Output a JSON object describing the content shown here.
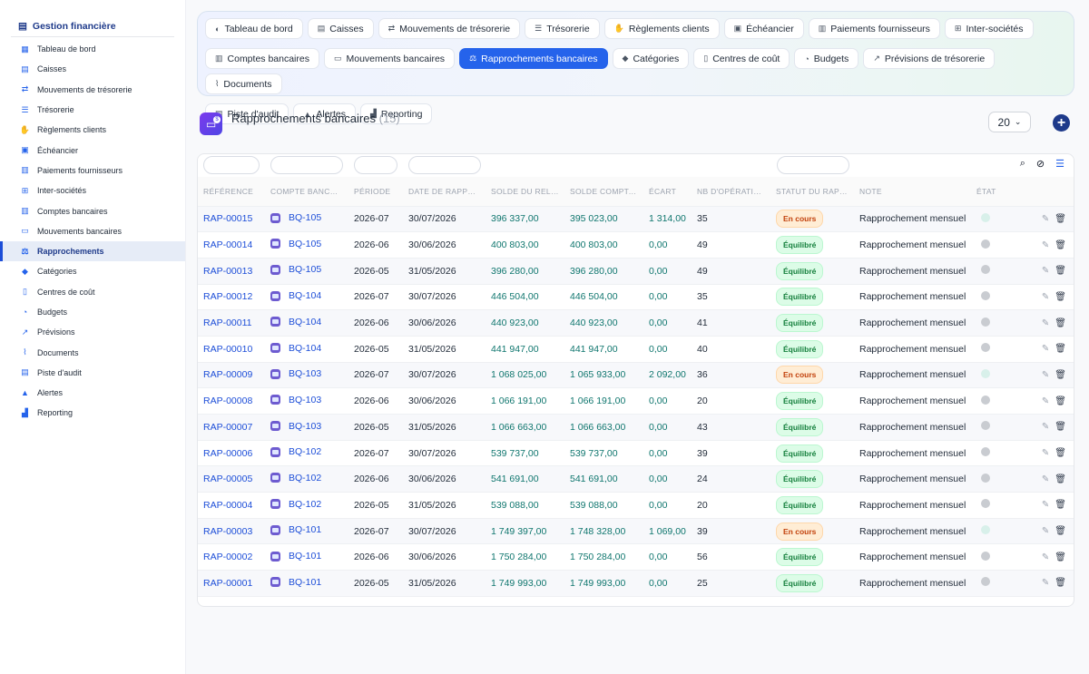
{
  "app": {
    "title": "Gestion financière",
    "brand_icon": "bank-stack-icon"
  },
  "sidebar": {
    "items": [
      {
        "label": "Tableau de bord",
        "icon": "dashboard-icon",
        "glyph": "▦"
      },
      {
        "label": "Caisses",
        "icon": "cash-register-icon",
        "glyph": "▤"
      },
      {
        "label": "Mouvements de trésorerie",
        "icon": "transfer-icon",
        "glyph": "⇄"
      },
      {
        "label": "Trésorerie",
        "icon": "bars-icon",
        "glyph": "☰"
      },
      {
        "label": "Règlements clients",
        "icon": "hand-money-icon",
        "glyph": "✋"
      },
      {
        "label": "Échéancier",
        "icon": "calendar-check-icon",
        "glyph": "▣"
      },
      {
        "label": "Paiements fournisseurs",
        "icon": "invoice-icon",
        "glyph": "▥"
      },
      {
        "label": "Inter-sociétés",
        "icon": "sitemap-icon",
        "glyph": "⊞"
      },
      {
        "label": "Comptes bancaires",
        "icon": "bank-icon",
        "glyph": "▥"
      },
      {
        "label": "Mouvements bancaires",
        "icon": "money-bill-icon",
        "glyph": "▭"
      },
      {
        "label": "Rapprochements",
        "icon": "scale-icon",
        "glyph": "⚖",
        "active": true
      },
      {
        "label": "Catégories",
        "icon": "tags-icon",
        "glyph": "◆"
      },
      {
        "label": "Centres de coût",
        "icon": "building-icon",
        "glyph": "▯"
      },
      {
        "label": "Budgets",
        "icon": "pie-chart-icon",
        "glyph": "◔"
      },
      {
        "label": "Prévisions",
        "icon": "line-chart-icon",
        "glyph": "↗"
      },
      {
        "label": "Documents",
        "icon": "paperclip-icon",
        "glyph": "⌇"
      },
      {
        "label": "Piste d'audit",
        "icon": "clipboard-icon",
        "glyph": "▤"
      },
      {
        "label": "Alertes",
        "icon": "bell-icon",
        "glyph": "▲"
      },
      {
        "label": "Reporting",
        "icon": "chart-bar-icon",
        "glyph": "▟"
      }
    ]
  },
  "tabs": {
    "rows": [
      [
        {
          "label": "Tableau de bord",
          "icon": "dashboard-icon",
          "glyph": "◐"
        },
        {
          "label": "Caisses",
          "icon": "cash-register-icon",
          "glyph": "▤"
        },
        {
          "label": "Mouvements de trésorerie",
          "icon": "transfer-icon",
          "glyph": "⇄"
        },
        {
          "label": "Trésorerie",
          "icon": "bars-icon",
          "glyph": "☰"
        },
        {
          "label": "Règlements clients",
          "icon": "hand-money-icon",
          "glyph": "✋"
        },
        {
          "label": "Échéancier",
          "icon": "calendar-check-icon",
          "glyph": "▣"
        },
        {
          "label": "Paiements fournisseurs",
          "icon": "invoice-icon",
          "glyph": "▥"
        },
        {
          "label": "Inter-sociétés",
          "icon": "sitemap-icon",
          "glyph": "⊞"
        }
      ],
      [
        {
          "label": "Comptes bancaires",
          "icon": "bank-icon",
          "glyph": "▥"
        },
        {
          "label": "Mouvements bancaires",
          "icon": "money-bill-icon",
          "glyph": "▭"
        },
        {
          "label": "Rapprochements bancaires",
          "icon": "scale-icon",
          "glyph": "⚖",
          "active": true
        },
        {
          "label": "Catégories",
          "icon": "tags-icon",
          "glyph": "◆"
        },
        {
          "label": "Centres de coût",
          "icon": "building-icon",
          "glyph": "▯"
        },
        {
          "label": "Budgets",
          "icon": "pie-chart-icon",
          "glyph": "◔"
        },
        {
          "label": "Prévisions de trésorerie",
          "icon": "line-chart-icon",
          "glyph": "↗"
        },
        {
          "label": "Documents",
          "icon": "paperclip-icon",
          "glyph": "⌇"
        }
      ],
      [
        {
          "label": "Piste d'audit",
          "icon": "clipboard-icon",
          "glyph": "▤"
        },
        {
          "label": "Alertes",
          "icon": "bell-icon",
          "glyph": "▲"
        },
        {
          "label": "Reporting",
          "icon": "chart-bar-icon",
          "glyph": "▟"
        }
      ]
    ]
  },
  "header": {
    "title": "Rapprochements bancaires",
    "count": "(15)"
  },
  "pager": {
    "page_size": "20"
  },
  "table": {
    "columns": [
      "Référence",
      "Compte bancaire",
      "Période",
      "Date de rapprochement",
      "Solde du relevé",
      "Solde comptable",
      "Écart",
      "Nb d'opérations",
      "Statut du rapprochement",
      "Note",
      "État",
      ""
    ],
    "rows": [
      {
        "ref": "RAP-00015",
        "account": "BQ-105",
        "period": "2026-07",
        "date": "30/07/2026",
        "stmt": "396 337,00",
        "book": "395 023,00",
        "gap": "1 314,00",
        "ops": "35",
        "status": "En cours",
        "note": "Rapprochement mensuel"
      },
      {
        "ref": "RAP-00014",
        "account": "BQ-105",
        "period": "2026-06",
        "date": "30/06/2026",
        "stmt": "400 803,00",
        "book": "400 803,00",
        "gap": "0,00",
        "ops": "49",
        "status": "Équilibré",
        "note": "Rapprochement mensuel"
      },
      {
        "ref": "RAP-00013",
        "account": "BQ-105",
        "period": "2026-05",
        "date": "31/05/2026",
        "stmt": "396 280,00",
        "book": "396 280,00",
        "gap": "0,00",
        "ops": "49",
        "status": "Équilibré",
        "note": "Rapprochement mensuel"
      },
      {
        "ref": "RAP-00012",
        "account": "BQ-104",
        "period": "2026-07",
        "date": "30/07/2026",
        "stmt": "446 504,00",
        "book": "446 504,00",
        "gap": "0,00",
        "ops": "35",
        "status": "Équilibré",
        "note": "Rapprochement mensuel"
      },
      {
        "ref": "RAP-00011",
        "account": "BQ-104",
        "period": "2026-06",
        "date": "30/06/2026",
        "stmt": "440 923,00",
        "book": "440 923,00",
        "gap": "0,00",
        "ops": "41",
        "status": "Équilibré",
        "note": "Rapprochement mensuel"
      },
      {
        "ref": "RAP-00010",
        "account": "BQ-104",
        "period": "2026-05",
        "date": "31/05/2026",
        "stmt": "441 947,00",
        "book": "441 947,00",
        "gap": "0,00",
        "ops": "40",
        "status": "Équilibré",
        "note": "Rapprochement mensuel"
      },
      {
        "ref": "RAP-00009",
        "account": "BQ-103",
        "period": "2026-07",
        "date": "30/07/2026",
        "stmt": "1 068 025,00",
        "book": "1 065 933,00",
        "gap": "2 092,00",
        "ops": "36",
        "status": "En cours",
        "note": "Rapprochement mensuel"
      },
      {
        "ref": "RAP-00008",
        "account": "BQ-103",
        "period": "2026-06",
        "date": "30/06/2026",
        "stmt": "1 066 191,00",
        "book": "1 066 191,00",
        "gap": "0,00",
        "ops": "20",
        "status": "Équilibré",
        "note": "Rapprochement mensuel"
      },
      {
        "ref": "RAP-00007",
        "account": "BQ-103",
        "period": "2026-05",
        "date": "31/05/2026",
        "stmt": "1 066 663,00",
        "book": "1 066 663,00",
        "gap": "0,00",
        "ops": "43",
        "status": "Équilibré",
        "note": "Rapprochement mensuel"
      },
      {
        "ref": "RAP-00006",
        "account": "BQ-102",
        "period": "2026-07",
        "date": "30/07/2026",
        "stmt": "539 737,00",
        "book": "539 737,00",
        "gap": "0,00",
        "ops": "39",
        "status": "Équilibré",
        "note": "Rapprochement mensuel"
      },
      {
        "ref": "RAP-00005",
        "account": "BQ-102",
        "period": "2026-06",
        "date": "30/06/2026",
        "stmt": "541 691,00",
        "book": "541 691,00",
        "gap": "0,00",
        "ops": "24",
        "status": "Équilibré",
        "note": "Rapprochement mensuel"
      },
      {
        "ref": "RAP-00004",
        "account": "BQ-102",
        "period": "2026-05",
        "date": "31/05/2026",
        "stmt": "539 088,00",
        "book": "539 088,00",
        "gap": "0,00",
        "ops": "20",
        "status": "Équilibré",
        "note": "Rapprochement mensuel"
      },
      {
        "ref": "RAP-00003",
        "account": "BQ-101",
        "period": "2026-07",
        "date": "30/07/2026",
        "stmt": "1 749 397,00",
        "book": "1 748 328,00",
        "gap": "1 069,00",
        "ops": "39",
        "status": "En cours",
        "note": "Rapprochement mensuel"
      },
      {
        "ref": "RAP-00002",
        "account": "BQ-101",
        "period": "2026-06",
        "date": "30/06/2026",
        "stmt": "1 750 284,00",
        "book": "1 750 284,00",
        "gap": "0,00",
        "ops": "56",
        "status": "Équilibré",
        "note": "Rapprochement mensuel"
      },
      {
        "ref": "RAP-00001",
        "account": "BQ-101",
        "period": "2026-05",
        "date": "31/05/2026",
        "stmt": "1 749 993,00",
        "book": "1 749 993,00",
        "gap": "0,00",
        "ops": "25",
        "status": "Équilibré",
        "note": "Rapprochement mensuel"
      }
    ]
  },
  "colors": {
    "accent": "#2563eb",
    "brand": "#1e3a8a",
    "ok": "#15803d",
    "wip": "#c2410c",
    "money": "#0f766e"
  }
}
